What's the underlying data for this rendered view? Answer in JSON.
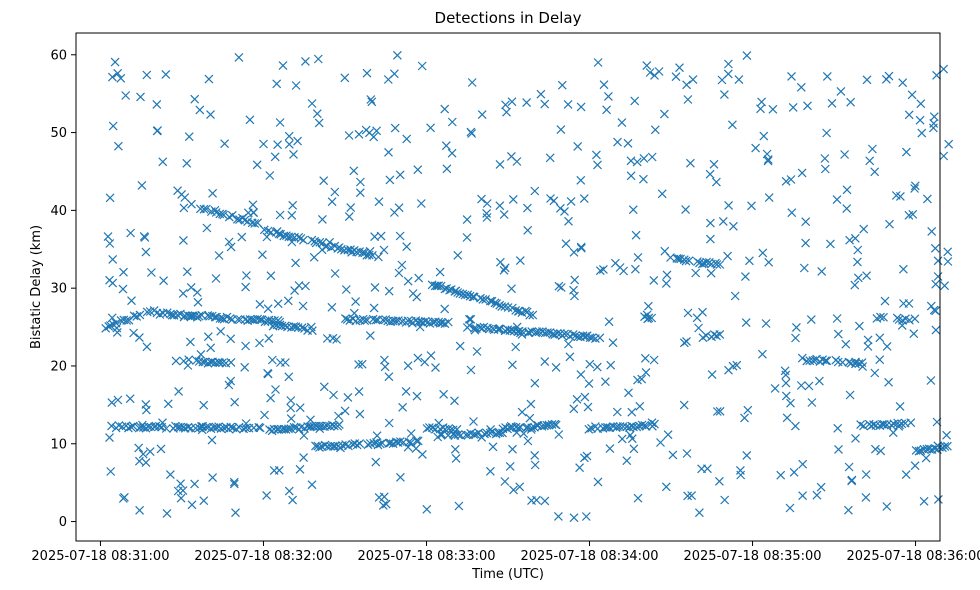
{
  "chart_data": {
    "type": "scatter",
    "title": "Detections in Delay",
    "xlabel": "Time (UTC)",
    "ylabel": "Bistatic Delay (km)",
    "marker": "x",
    "color": "#1f77b4",
    "grid": false,
    "legend": "none",
    "x_ticks": [
      "2025-07-18 08:31:00",
      "2025-07-18 08:32:00",
      "2025-07-18 08:33:00",
      "2025-07-18 08:34:00",
      "2025-07-18 08:35:00",
      "2025-07-18 08:36:00"
    ],
    "y_ticks": [
      0,
      10,
      20,
      30,
      40,
      50,
      60
    ],
    "xlim": [
      "2025-07-18 08:30:51",
      "2025-07-18 08:36:09"
    ],
    "ylim": [
      -2.5,
      62.8
    ],
    "tracks": [
      {
        "x_start": "2025-07-18 08:31:04",
        "x_end": "2025-07-18 08:31:59",
        "y_start": 12.2,
        "y_end": 12.0
      },
      {
        "x_start": "2025-07-18 08:31:02",
        "x_end": "2025-07-18 08:31:20",
        "y_start": 25.0,
        "y_end": 27.2
      },
      {
        "x_start": "2025-07-18 08:31:20",
        "x_end": "2025-07-18 08:32:06",
        "y_start": 26.8,
        "y_end": 25.7
      },
      {
        "x_start": "2025-07-18 08:31:28",
        "x_end": "2025-07-18 08:31:48",
        "y_start": 20.8,
        "y_end": 20.3
      },
      {
        "x_start": "2025-07-18 08:31:38",
        "x_end": "2025-07-18 08:31:58",
        "y_start": 40.2,
        "y_end": 38.3
      },
      {
        "x_start": "2025-07-18 08:32:00",
        "x_end": "2025-07-18 08:32:42",
        "y_start": 37.5,
        "y_end": 34.0
      },
      {
        "x_start": "2025-07-18 08:32:02",
        "x_end": "2025-07-18 08:32:28",
        "y_start": 11.8,
        "y_end": 12.3
      },
      {
        "x_start": "2025-07-18 08:32:04",
        "x_end": "2025-07-18 08:32:18",
        "y_start": 25.3,
        "y_end": 24.6
      },
      {
        "x_start": "2025-07-18 08:32:18",
        "x_end": "2025-07-18 08:32:58",
        "y_start": 9.6,
        "y_end": 10.3
      },
      {
        "x_start": "2025-07-18 08:32:30",
        "x_end": "2025-07-18 08:33:08",
        "y_start": 26.0,
        "y_end": 25.5
      },
      {
        "x_start": "2025-07-18 08:33:00",
        "x_end": "2025-07-18 08:33:12",
        "y_start": 12.0,
        "y_end": 11.8
      },
      {
        "x_start": "2025-07-18 08:33:04",
        "x_end": "2025-07-18 08:33:28",
        "y_start": 11.0,
        "y_end": 11.5
      },
      {
        "x_start": "2025-07-18 08:33:02",
        "x_end": "2025-07-18 08:33:40",
        "y_start": 30.5,
        "y_end": 26.5
      },
      {
        "x_start": "2025-07-18 08:33:14",
        "x_end": "2025-07-18 08:34:04",
        "y_start": 25.1,
        "y_end": 23.6
      },
      {
        "x_start": "2025-07-18 08:33:28",
        "x_end": "2025-07-18 08:33:48",
        "y_start": 12.0,
        "y_end": 12.4
      },
      {
        "x_start": "2025-07-18 08:34:00",
        "x_end": "2025-07-18 08:34:24",
        "y_start": 12.0,
        "y_end": 12.4
      },
      {
        "x_start": "2025-07-18 08:34:18",
        "x_end": "2025-07-18 08:34:24",
        "y_start": 26.6,
        "y_end": 26.2
      },
      {
        "x_start": "2025-07-18 08:34:30",
        "x_end": "2025-07-18 08:34:48",
        "y_start": 33.8,
        "y_end": 33.0
      },
      {
        "x_start": "2025-07-18 08:34:40",
        "x_end": "2025-07-18 08:34:48",
        "y_start": 23.6,
        "y_end": 24.0
      },
      {
        "x_start": "2025-07-18 08:35:20",
        "x_end": "2025-07-18 08:35:40",
        "y_start": 20.8,
        "y_end": 20.4
      },
      {
        "x_start": "2025-07-18 08:35:40",
        "x_end": "2025-07-18 08:35:58",
        "y_start": 12.3,
        "y_end": 12.6
      },
      {
        "x_start": "2025-07-18 08:35:46",
        "x_end": "2025-07-18 08:35:58",
        "y_start": 26.2,
        "y_end": 25.9
      },
      {
        "x_start": "2025-07-18 08:36:00",
        "x_end": "2025-07-18 08:36:12",
        "y_start": 9.0,
        "y_end": 9.6
      }
    ],
    "scattered_detections": {
      "x_range": [
        "2025-07-18 08:31:02",
        "2025-07-18 08:36:13"
      ],
      "y_range": [
        0.5,
        60.0
      ]
    }
  }
}
